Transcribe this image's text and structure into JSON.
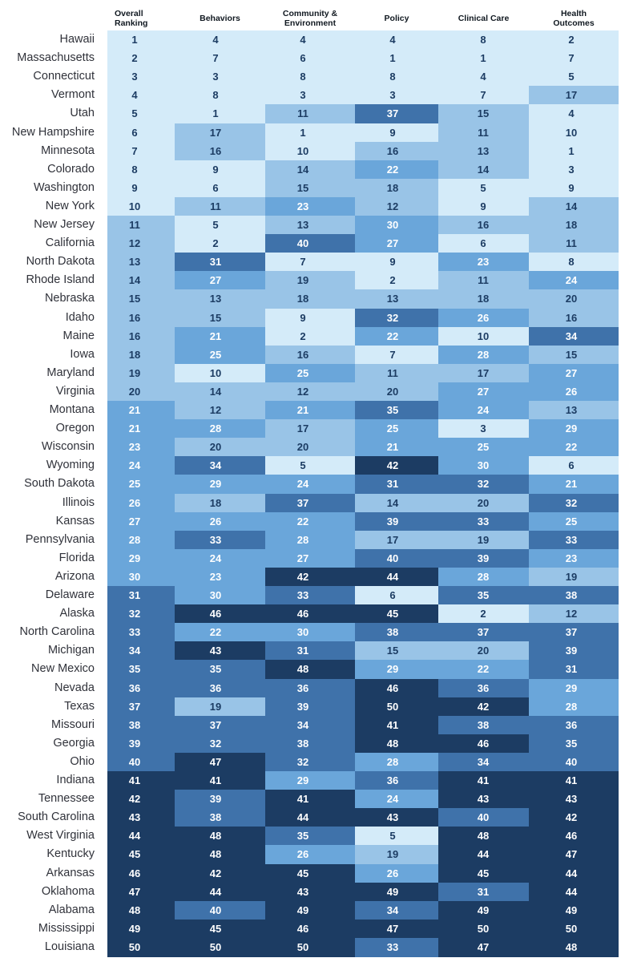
{
  "colors": {
    "tier1": "#d4ebf9",
    "tier2": "#99c4e7",
    "tier3": "#6aa6da",
    "tier4": "#3f72aa",
    "tier5": "#1c3c63",
    "text_dark": "#1c3c63",
    "text_light": "#ffffff"
  },
  "chart_data": {
    "type": "table",
    "columns": [
      "Overall\nRanking",
      "Behaviors",
      "Community &\nEnvironment",
      "Policy",
      "Clinical Care",
      "Health\nOutcomes"
    ],
    "rows": [
      {
        "state": "Hawaii",
        "values": [
          1,
          4,
          4,
          4,
          8,
          2
        ]
      },
      {
        "state": "Massachusetts",
        "values": [
          2,
          7,
          6,
          1,
          1,
          7
        ]
      },
      {
        "state": "Connecticut",
        "values": [
          3,
          3,
          8,
          8,
          4,
          5
        ]
      },
      {
        "state": "Vermont",
        "values": [
          4,
          8,
          3,
          3,
          7,
          17
        ]
      },
      {
        "state": "Utah",
        "values": [
          5,
          1,
          11,
          37,
          15,
          4
        ]
      },
      {
        "state": "New Hampshire",
        "values": [
          6,
          17,
          1,
          9,
          11,
          10
        ]
      },
      {
        "state": "Minnesota",
        "values": [
          7,
          16,
          10,
          16,
          13,
          1
        ]
      },
      {
        "state": "Colorado",
        "values": [
          8,
          9,
          14,
          22,
          14,
          3
        ]
      },
      {
        "state": "Washington",
        "values": [
          9,
          6,
          15,
          18,
          5,
          9
        ]
      },
      {
        "state": "New York",
        "values": [
          10,
          11,
          23,
          12,
          9,
          14
        ]
      },
      {
        "state": "New Jersey",
        "values": [
          11,
          5,
          13,
          30,
          16,
          18
        ]
      },
      {
        "state": "California",
        "values": [
          12,
          2,
          40,
          27,
          6,
          11
        ]
      },
      {
        "state": "North Dakota",
        "values": [
          13,
          31,
          7,
          9,
          23,
          8
        ]
      },
      {
        "state": "Rhode Island",
        "values": [
          14,
          27,
          19,
          2,
          11,
          24
        ]
      },
      {
        "state": "Nebraska",
        "values": [
          15,
          13,
          18,
          13,
          18,
          20
        ]
      },
      {
        "state": "Idaho",
        "values": [
          16,
          15,
          9,
          32,
          26,
          16
        ]
      },
      {
        "state": "Maine",
        "values": [
          16,
          21,
          2,
          22,
          10,
          34
        ]
      },
      {
        "state": "Iowa",
        "values": [
          18,
          25,
          16,
          7,
          28,
          15
        ]
      },
      {
        "state": "Maryland",
        "values": [
          19,
          10,
          25,
          11,
          17,
          27
        ]
      },
      {
        "state": "Virginia",
        "values": [
          20,
          14,
          12,
          20,
          27,
          26
        ]
      },
      {
        "state": "Montana",
        "values": [
          21,
          12,
          21,
          35,
          24,
          13
        ]
      },
      {
        "state": "Oregon",
        "values": [
          21,
          28,
          17,
          25,
          3,
          29
        ]
      },
      {
        "state": "Wisconsin",
        "values": [
          23,
          20,
          20,
          21,
          25,
          22
        ]
      },
      {
        "state": "Wyoming",
        "values": [
          24,
          34,
          5,
          42,
          30,
          6
        ]
      },
      {
        "state": "South Dakota",
        "values": [
          25,
          29,
          24,
          31,
          32,
          21
        ]
      },
      {
        "state": "Illinois",
        "values": [
          26,
          18,
          37,
          14,
          20,
          32
        ]
      },
      {
        "state": "Kansas",
        "values": [
          27,
          26,
          22,
          39,
          33,
          25
        ]
      },
      {
        "state": "Pennsylvania",
        "values": [
          28,
          33,
          28,
          17,
          19,
          33
        ]
      },
      {
        "state": "Florida",
        "values": [
          29,
          24,
          27,
          40,
          39,
          23
        ]
      },
      {
        "state": "Arizona",
        "values": [
          30,
          23,
          42,
          44,
          28,
          19
        ]
      },
      {
        "state": "Delaware",
        "values": [
          31,
          30,
          33,
          6,
          35,
          38
        ]
      },
      {
        "state": "Alaska",
        "values": [
          32,
          46,
          46,
          45,
          2,
          12
        ]
      },
      {
        "state": "North Carolina",
        "values": [
          33,
          22,
          30,
          38,
          37,
          37
        ]
      },
      {
        "state": "Michigan",
        "values": [
          34,
          43,
          31,
          15,
          20,
          39
        ]
      },
      {
        "state": "New Mexico",
        "values": [
          35,
          35,
          48,
          29,
          22,
          31
        ]
      },
      {
        "state": "Nevada",
        "values": [
          36,
          36,
          36,
          46,
          36,
          29
        ]
      },
      {
        "state": "Texas",
        "values": [
          37,
          19,
          39,
          50,
          42,
          28
        ]
      },
      {
        "state": "Missouri",
        "values": [
          38,
          37,
          34,
          41,
          38,
          36
        ]
      },
      {
        "state": "Georgia",
        "values": [
          39,
          32,
          38,
          48,
          46,
          35
        ]
      },
      {
        "state": "Ohio",
        "values": [
          40,
          47,
          32,
          28,
          34,
          40
        ]
      },
      {
        "state": "Indiana",
        "values": [
          41,
          41,
          29,
          36,
          41,
          41
        ]
      },
      {
        "state": "Tennessee",
        "values": [
          42,
          39,
          41,
          24,
          43,
          43
        ]
      },
      {
        "state": "South Carolina",
        "values": [
          43,
          38,
          44,
          43,
          40,
          42
        ]
      },
      {
        "state": "West Virginia",
        "values": [
          44,
          48,
          35,
          5,
          48,
          46
        ]
      },
      {
        "state": "Kentucky",
        "values": [
          45,
          48,
          26,
          19,
          44,
          47
        ]
      },
      {
        "state": "Arkansas",
        "values": [
          46,
          42,
          45,
          26,
          45,
          44
        ]
      },
      {
        "state": "Oklahoma",
        "values": [
          47,
          44,
          43,
          49,
          31,
          44
        ]
      },
      {
        "state": "Alabama",
        "values": [
          48,
          40,
          49,
          34,
          49,
          49
        ]
      },
      {
        "state": "Mississippi",
        "values": [
          49,
          45,
          46,
          47,
          50,
          50
        ]
      },
      {
        "state": "Louisiana",
        "values": [
          50,
          50,
          50,
          33,
          47,
          48
        ]
      }
    ]
  }
}
